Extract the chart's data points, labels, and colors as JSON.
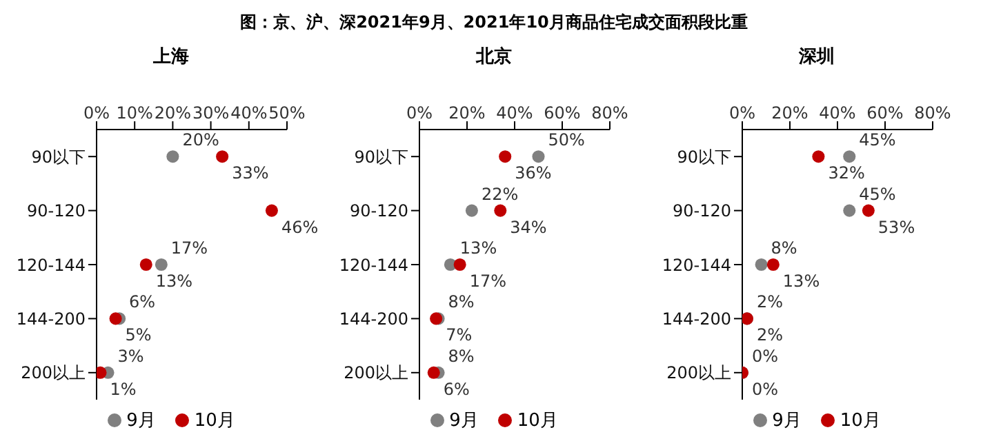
{
  "chart_data": [
    {
      "type": "scatter",
      "title": "上海",
      "annotations": [
        "图：京、沪、深2021年9月、2021年10月商品住宅成交面积段比重"
      ],
      "categories": [
        "90以下",
        "90-120",
        "120-144",
        "144-200",
        "200以上"
      ],
      "orientation": "horizontal",
      "xlim": [
        0,
        50
      ],
      "xticks": [
        {
          "value": 0,
          "label": "0%"
        },
        {
          "value": 10,
          "label": "10%"
        },
        {
          "value": 20,
          "label": "20%"
        },
        {
          "value": 30,
          "label": "30%"
        },
        {
          "value": 40,
          "label": "40%"
        },
        {
          "value": 50,
          "label": "50%"
        }
      ],
      "legend": "bottom",
      "marker": "circle",
      "series": [
        {
          "name": "9月",
          "color": "#808080",
          "values": [
            20,
            null,
            17,
            6,
            3
          ],
          "value_labels": [
            "20%",
            null,
            "17%",
            "6%",
            "3%"
          ]
        },
        {
          "name": "10月",
          "color": "#c00000",
          "values": [
            33,
            46,
            13,
            5,
            1
          ],
          "value_labels": [
            "33%",
            "46%",
            "13%",
            "5%",
            "1%"
          ]
        }
      ]
    },
    {
      "type": "scatter",
      "title": "北京",
      "categories": [
        "90以下",
        "90-120",
        "120-144",
        "144-200",
        "200以上"
      ],
      "orientation": "horizontal",
      "xlim": [
        0,
        80
      ],
      "xticks": [
        {
          "value": 0,
          "label": "0%"
        },
        {
          "value": 20,
          "label": "20%"
        },
        {
          "value": 40,
          "label": "40%"
        },
        {
          "value": 60,
          "label": "60%"
        },
        {
          "value": 80,
          "label": "80%"
        }
      ],
      "legend": "bottom",
      "marker": "circle",
      "series": [
        {
          "name": "9月",
          "color": "#808080",
          "values": [
            50,
            22,
            13,
            8,
            8
          ],
          "value_labels": [
            "50%",
            "22%",
            "13%",
            "8%",
            "8%"
          ]
        },
        {
          "name": "10月",
          "color": "#c00000",
          "values": [
            36,
            34,
            17,
            7,
            6
          ],
          "value_labels": [
            "36%",
            "34%",
            "17%",
            "7%",
            "6%"
          ]
        }
      ]
    },
    {
      "type": "scatter",
      "title": "深圳",
      "categories": [
        "90以下",
        "90-120",
        "120-144",
        "144-200",
        "200以上"
      ],
      "orientation": "horizontal",
      "xlim": [
        0,
        80
      ],
      "xticks": [
        {
          "value": 0,
          "label": "0%"
        },
        {
          "value": 20,
          "label": "20%"
        },
        {
          "value": 40,
          "label": "40%"
        },
        {
          "value": 60,
          "label": "60%"
        },
        {
          "value": 80,
          "label": "80%"
        }
      ],
      "legend": "bottom",
      "marker": "circle",
      "series": [
        {
          "name": "9月",
          "color": "#808080",
          "values": [
            45,
            45,
            8,
            2,
            0
          ],
          "value_labels": [
            "45%",
            "45%",
            "8%",
            "2%",
            "0%"
          ]
        },
        {
          "name": "10月",
          "color": "#c00000",
          "values": [
            32,
            53,
            13,
            2,
            0
          ],
          "value_labels": [
            "32%",
            "53%",
            "13%",
            "2%",
            "0%"
          ]
        }
      ]
    }
  ]
}
